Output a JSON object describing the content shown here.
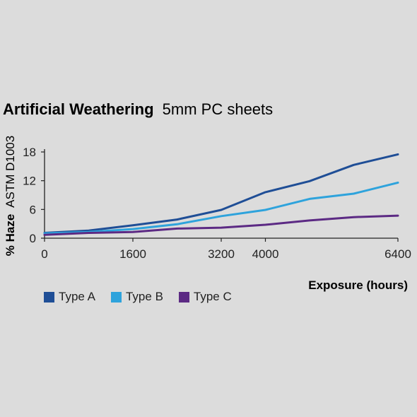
{
  "chart_data": {
    "type": "line",
    "title": "Artificial Weathering",
    "subtitle": "5mm PC sheets",
    "xlabel": "Exposure (hours)",
    "ylabel_bold": "% Haze",
    "ylabel_rest": "ASTM D1003",
    "xlim": [
      0,
      6400
    ],
    "ylim": [
      0,
      18
    ],
    "xticks": [
      0,
      1600,
      3200,
      4000,
      6400
    ],
    "xtick_labels": [
      "0",
      "1600",
      "3200",
      "4000",
      "6400"
    ],
    "yticks": [
      0,
      6,
      12,
      18
    ],
    "ytick_labels": [
      "0",
      "6",
      "12",
      "18"
    ],
    "legend_position": "bottom-left",
    "x": [
      0,
      800,
      1600,
      2400,
      3200,
      4000,
      4800,
      5600,
      6400
    ],
    "series": [
      {
        "name": "Type A",
        "color": "#1f4e96",
        "values": [
          1.1,
          1.6,
          2.7,
          3.9,
          5.9,
          9.6,
          11.9,
          15.3,
          17.5
        ]
      },
      {
        "name": "Type B",
        "color": "#2ea3dc",
        "values": [
          1.0,
          1.3,
          1.9,
          2.9,
          4.6,
          5.9,
          8.2,
          9.3,
          11.6
        ]
      },
      {
        "name": "Type C",
        "color": "#5c2a84",
        "values": [
          0.7,
          1.1,
          1.3,
          2.0,
          2.2,
          2.8,
          3.7,
          4.4,
          4.7
        ]
      }
    ]
  }
}
